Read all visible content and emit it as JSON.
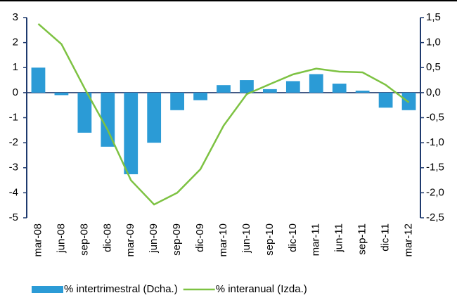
{
  "chart_data": {
    "type": "bar-line",
    "categories": [
      "mar-08",
      "jun-08",
      "sep-08",
      "dic-08",
      "mar-09",
      "jun-09",
      "sep-09",
      "dic-09",
      "mar-10",
      "jun-10",
      "sep-10",
      "dic-10",
      "mar-11",
      "jun-11",
      "sep-11",
      "dic-11",
      "mar-12"
    ],
    "series": [
      {
        "name": "% intertrimestral (Dcha.)",
        "type": "bar",
        "axis": "y2",
        "color": "#2b9bd6",
        "values": [
          0.5,
          -0.05,
          -0.8,
          -1.08,
          -1.63,
          -1.0,
          -0.35,
          -0.15,
          0.15,
          0.25,
          0.07,
          0.23,
          0.37,
          0.18,
          0.04,
          -0.3,
          -0.35
        ]
      },
      {
        "name": "% interanual (Izda.)",
        "type": "line",
        "axis": "y",
        "color": "#7dc242",
        "values": [
          2.75,
          1.94,
          0.17,
          -1.5,
          -3.5,
          -4.47,
          -4.0,
          -3.06,
          -1.32,
          -0.06,
          0.34,
          0.73,
          0.96,
          0.84,
          0.81,
          0.31,
          -0.39
        ]
      }
    ],
    "ylim": [
      -5,
      3
    ],
    "yticks": [
      -5,
      -4,
      -3,
      -2,
      -1,
      0,
      1,
      2,
      3
    ],
    "y2lim": [
      -2.5,
      1.5
    ],
    "y2ticks": [
      {
        "value": -2.5,
        "label": "-2,5"
      },
      {
        "value": -2,
        "label": "-2,0"
      },
      {
        "value": -1.5,
        "label": "-1,5"
      },
      {
        "value": -1,
        "label": "-1,0"
      },
      {
        "value": -0.5,
        "label": "-0,5"
      },
      {
        "value": 0,
        "label": "0,0"
      },
      {
        "value": 0.5,
        "label": "0,5"
      },
      {
        "value": 1,
        "label": "1,0"
      },
      {
        "value": 1.5,
        "label": "1,5"
      }
    ]
  }
}
